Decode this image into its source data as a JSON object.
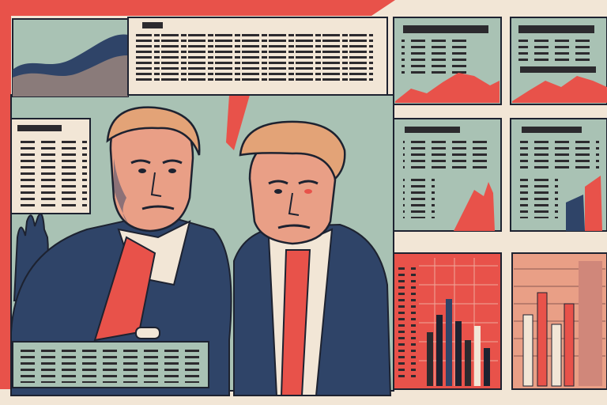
{
  "scene": {
    "palette": {
      "background": "#f2e6d6",
      "red": "#e8524a",
      "navy": "#2f4468",
      "sage": "#a9c2b4",
      "skin": "#e99f86",
      "hair": "#e3a377",
      "outline": "#1d2230"
    },
    "icons": [
      "left-figure",
      "right-figure",
      "raised-hand",
      "line-chart",
      "bar-chart",
      "news-panel"
    ]
  }
}
